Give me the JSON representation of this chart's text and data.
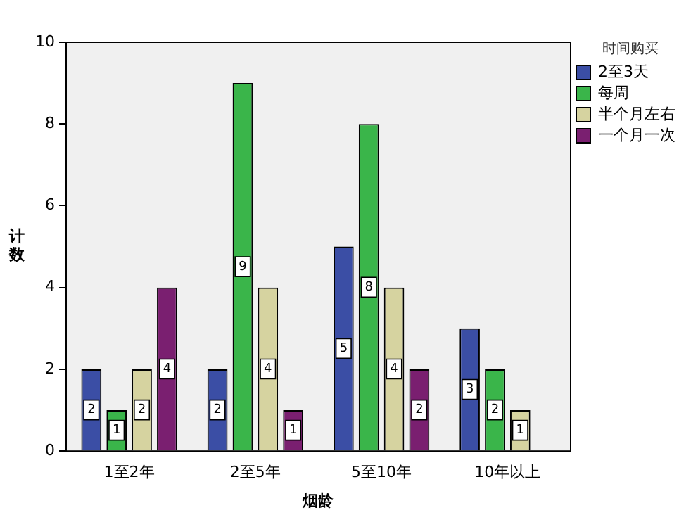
{
  "chart_data": {
    "type": "bar",
    "xlabel": "烟龄",
    "ylabel": "计数",
    "legend_title": "时间购买",
    "categories": [
      "1至2年",
      "2至5年",
      "5至10年",
      "10年以上"
    ],
    "series": [
      {
        "name": "2至3天",
        "color": "#3b4ea5",
        "values": [
          2,
          2,
          5,
          3
        ]
      },
      {
        "name": "每周",
        "color": "#3ab54a",
        "values": [
          1,
          9,
          8,
          2
        ]
      },
      {
        "name": "半个月左右",
        "color": "#d6d3a0",
        "values": [
          2,
          4,
          4,
          1
        ]
      },
      {
        "name": "一个月一次",
        "color": "#7a1f70",
        "values": [
          4,
          1,
          2,
          null
        ]
      }
    ],
    "ylim": [
      0,
      10
    ],
    "yticks": [
      0,
      2,
      4,
      6,
      8,
      10
    ],
    "grid": false,
    "legend": "top right",
    "data_labels": true
  }
}
